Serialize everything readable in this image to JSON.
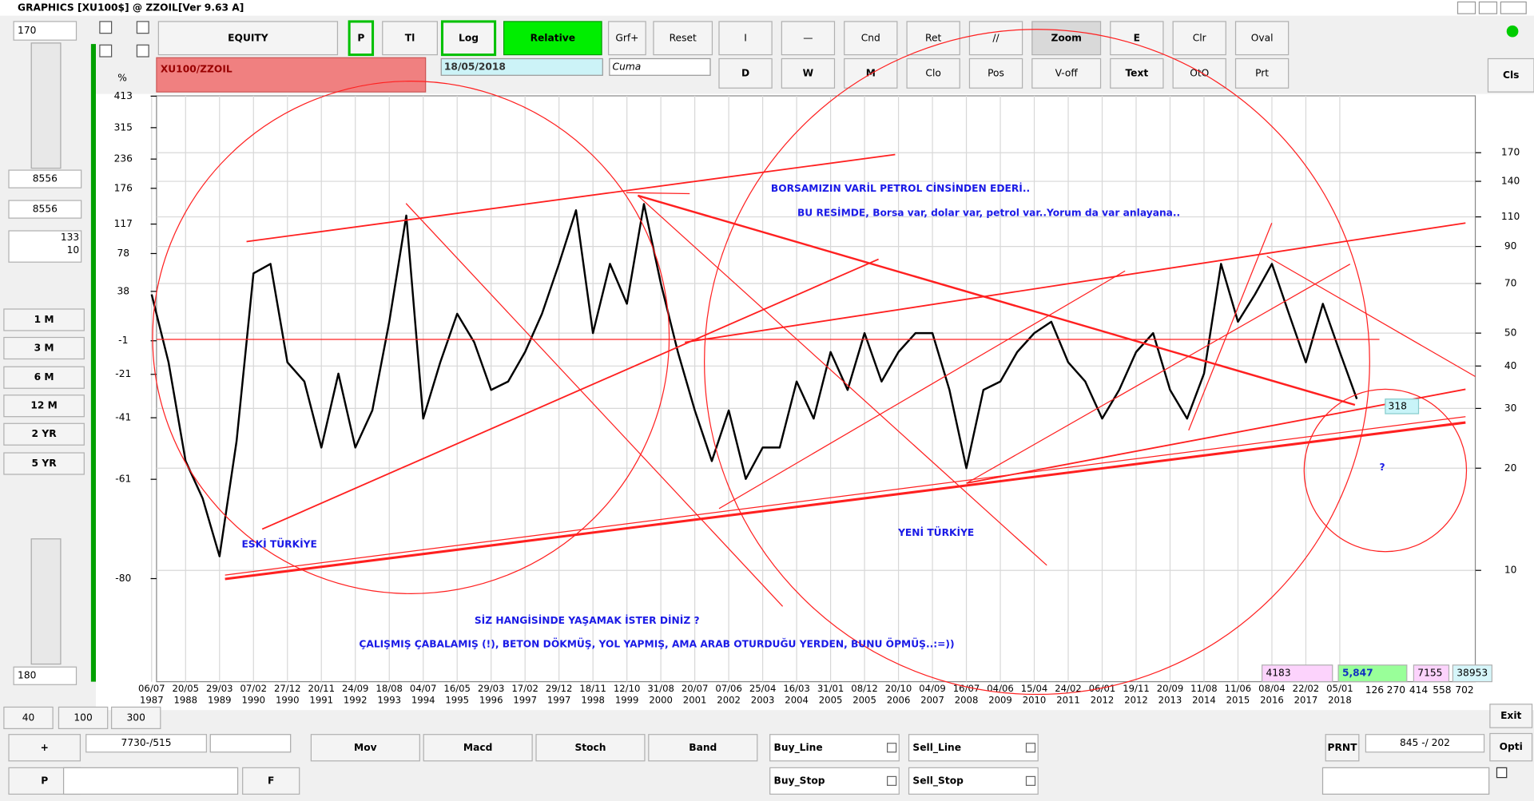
{
  "window": {
    "title": "GRAPHICS  [XU100$] @ ZZOIL[Ver 9.63 A]"
  },
  "left_panel": {
    "fields": [
      "170",
      "8556",
      "8556",
      "133",
      "10",
      "180"
    ],
    "buttons": [
      "1 M",
      "3 M",
      "6 M",
      "12 M",
      "2 YR",
      "5 YR"
    ]
  },
  "toolbar": {
    "row1": [
      "EQUITY",
      "P",
      "Tl",
      "Log",
      "Relative",
      "Grf+",
      "Reset",
      "I",
      "—",
      "Cnd",
      "Ret",
      "//",
      "Zoom",
      "E",
      "Clr",
      "Oval"
    ],
    "row2": [
      "D",
      "W",
      "M",
      "Clo",
      "Pos",
      "V-off",
      "Text",
      "OtO",
      "Prt"
    ],
    "close": "Cls"
  },
  "chart_header": {
    "symbol": "XU100/ZZOIL",
    "date": "18/05/2018",
    "day": "Cuma"
  },
  "chart_data": {
    "type": "line",
    "categories": [
      "06/07 1987",
      null,
      "20/05 1988",
      null,
      "29/03 1989",
      null,
      "07/02 1990",
      null,
      "27/12 1990",
      null,
      "20/11 1991",
      null,
      "24/09 1992",
      null,
      "18/08 1993",
      null,
      "04/07 1994",
      null,
      "16/05 1995",
      null,
      "29/03 1996",
      null,
      "17/02 1997",
      null,
      "29/12 1997",
      null,
      "18/11 1998",
      null,
      "12/10 1999",
      null,
      "31/08 2000",
      null,
      "20/07 2001",
      null,
      "07/06 2002",
      null,
      "25/04 2003",
      null,
      "16/03 2004",
      null,
      "31/01 2005",
      null,
      "08/12 2005",
      null,
      "20/10 2006",
      null,
      "04/09 2007",
      null,
      "16/07 2008",
      null,
      "04/06 2009",
      null,
      "15/04 2010",
      null,
      "24/02 2011",
      null,
      "06/01 2012",
      null,
      "19/11 2012",
      null,
      "20/09 2013",
      null,
      "11/08 2014",
      null,
      "11/06 2015",
      null,
      "08/04 2016",
      null,
      "22/02 2017",
      null,
      "05/01 2018",
      null
    ],
    "values": [
      65,
      41,
      21,
      16.3,
      11,
      24,
      75,
      80,
      41,
      36,
      23,
      38,
      23,
      29.6,
      54,
      111,
      28,
      41,
      57,
      47,
      34,
      36,
      44,
      57,
      80,
      115,
      50,
      80,
      61,
      120,
      70,
      44,
      29.6,
      21,
      29.6,
      18.6,
      23,
      23,
      36,
      28,
      44,
      34,
      50,
      36,
      44,
      50,
      50,
      34,
      20,
      34,
      36,
      44,
      50,
      54,
      41,
      36,
      28,
      34,
      44,
      50,
      34,
      28,
      38,
      80,
      54,
      65,
      80,
      57,
      41,
      61,
      44,
      32
    ],
    "color": "#000000",
    "yscale": "log",
    "ylim": [
      4.7,
      250
    ],
    "yticks": [
      10,
      20,
      30,
      40,
      50,
      70,
      90,
      110,
      140,
      170
    ],
    "y2label": "%",
    "y2lim": [
      -90,
      414
    ],
    "y2ticks": [
      -80,
      -61,
      -41,
      -21,
      -1,
      38,
      78,
      117,
      176,
      236,
      315,
      413
    ],
    "grid": true,
    "x_extra_labels": [
      "126",
      "270",
      "414",
      "558",
      "702"
    ],
    "annotations": [
      "BORSAMIZIN   VARİL   PETROL   CİNSİNDEN   EDERİ..",
      "BU RESİMDE, Borsa var, dolar var, petrol var..Yorum da var anlayana..",
      "ESKİ   TÜRKİYE",
      "YENİ  TÜRKİYE",
      "SİZ   HANGİSİNDE  YAŞAMAK  İSTER DİNİZ  ?",
      "ÇALIŞMIŞ ÇABALAMIŞ (!), BETON DÖKMÜŞ, YOL YAPMIŞ,  AMA  ARAB  OTURDUĞU YERDEN,  BUNU  ÖPMÜŞ..:=))",
      "?",
      "318"
    ]
  },
  "stats": [
    "4183",
    "5,847",
    "7155",
    "38953"
  ],
  "bottom": {
    "buttons": [
      "40",
      "100",
      "300",
      "+",
      "P",
      "F",
      "Mov",
      "Macd",
      "Stoch",
      "Band",
      "PRNT",
      "Exit",
      "Opti"
    ],
    "checks": [
      "Buy_Line",
      "Sell_Line",
      "Buy_Stop",
      "Sell_Stop"
    ],
    "fields": [
      "7730-/515",
      "845 -/ 202"
    ]
  }
}
